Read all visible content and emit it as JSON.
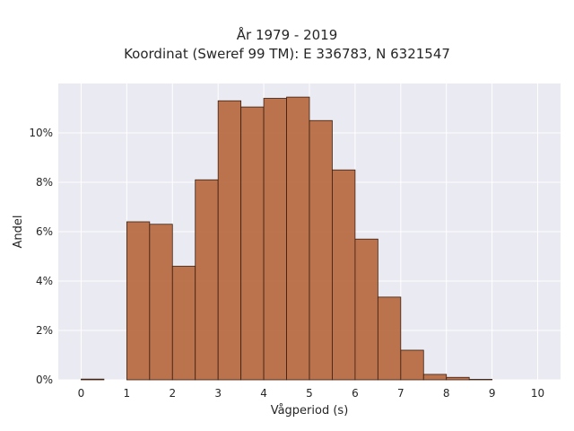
{
  "chart_data": {
    "type": "bar",
    "title_line1": "År 1979 - 2019",
    "title_line2": "Koordinat (Sweref 99 TM): E 336783, N 6321547",
    "xlabel": "Vågperiod (s)",
    "ylabel": "Andel",
    "bin_edges": [
      0,
      0.5,
      1,
      1.5,
      2,
      2.5,
      3,
      3.5,
      4,
      4.5,
      5,
      5.5,
      6,
      6.5,
      7,
      7.5,
      8,
      8.5,
      9,
      9.5,
      10
    ],
    "values": [
      0.03,
      0,
      6.4,
      6.3,
      4.6,
      8.1,
      11.3,
      11.05,
      11.4,
      11.45,
      10.5,
      8.5,
      5.7,
      3.35,
      1.2,
      0.22,
      0.1,
      0.02,
      0,
      0
    ],
    "xticks": [
      0,
      1,
      2,
      3,
      4,
      5,
      6,
      7,
      8,
      9,
      10
    ],
    "xlim": [
      -0.5,
      10.5
    ],
    "yticks": [
      0,
      2,
      4,
      6,
      8,
      10
    ],
    "ytick_labels": [
      "0%",
      "2%",
      "4%",
      "6%",
      "8%",
      "10%"
    ],
    "ylim": [
      0,
      12
    ],
    "grid": true,
    "colors": {
      "bar_fill": "#b5663b",
      "bar_edge": "#3d1f10",
      "plot_bg": "#eaeaf2",
      "grid": "#ffffff"
    }
  }
}
